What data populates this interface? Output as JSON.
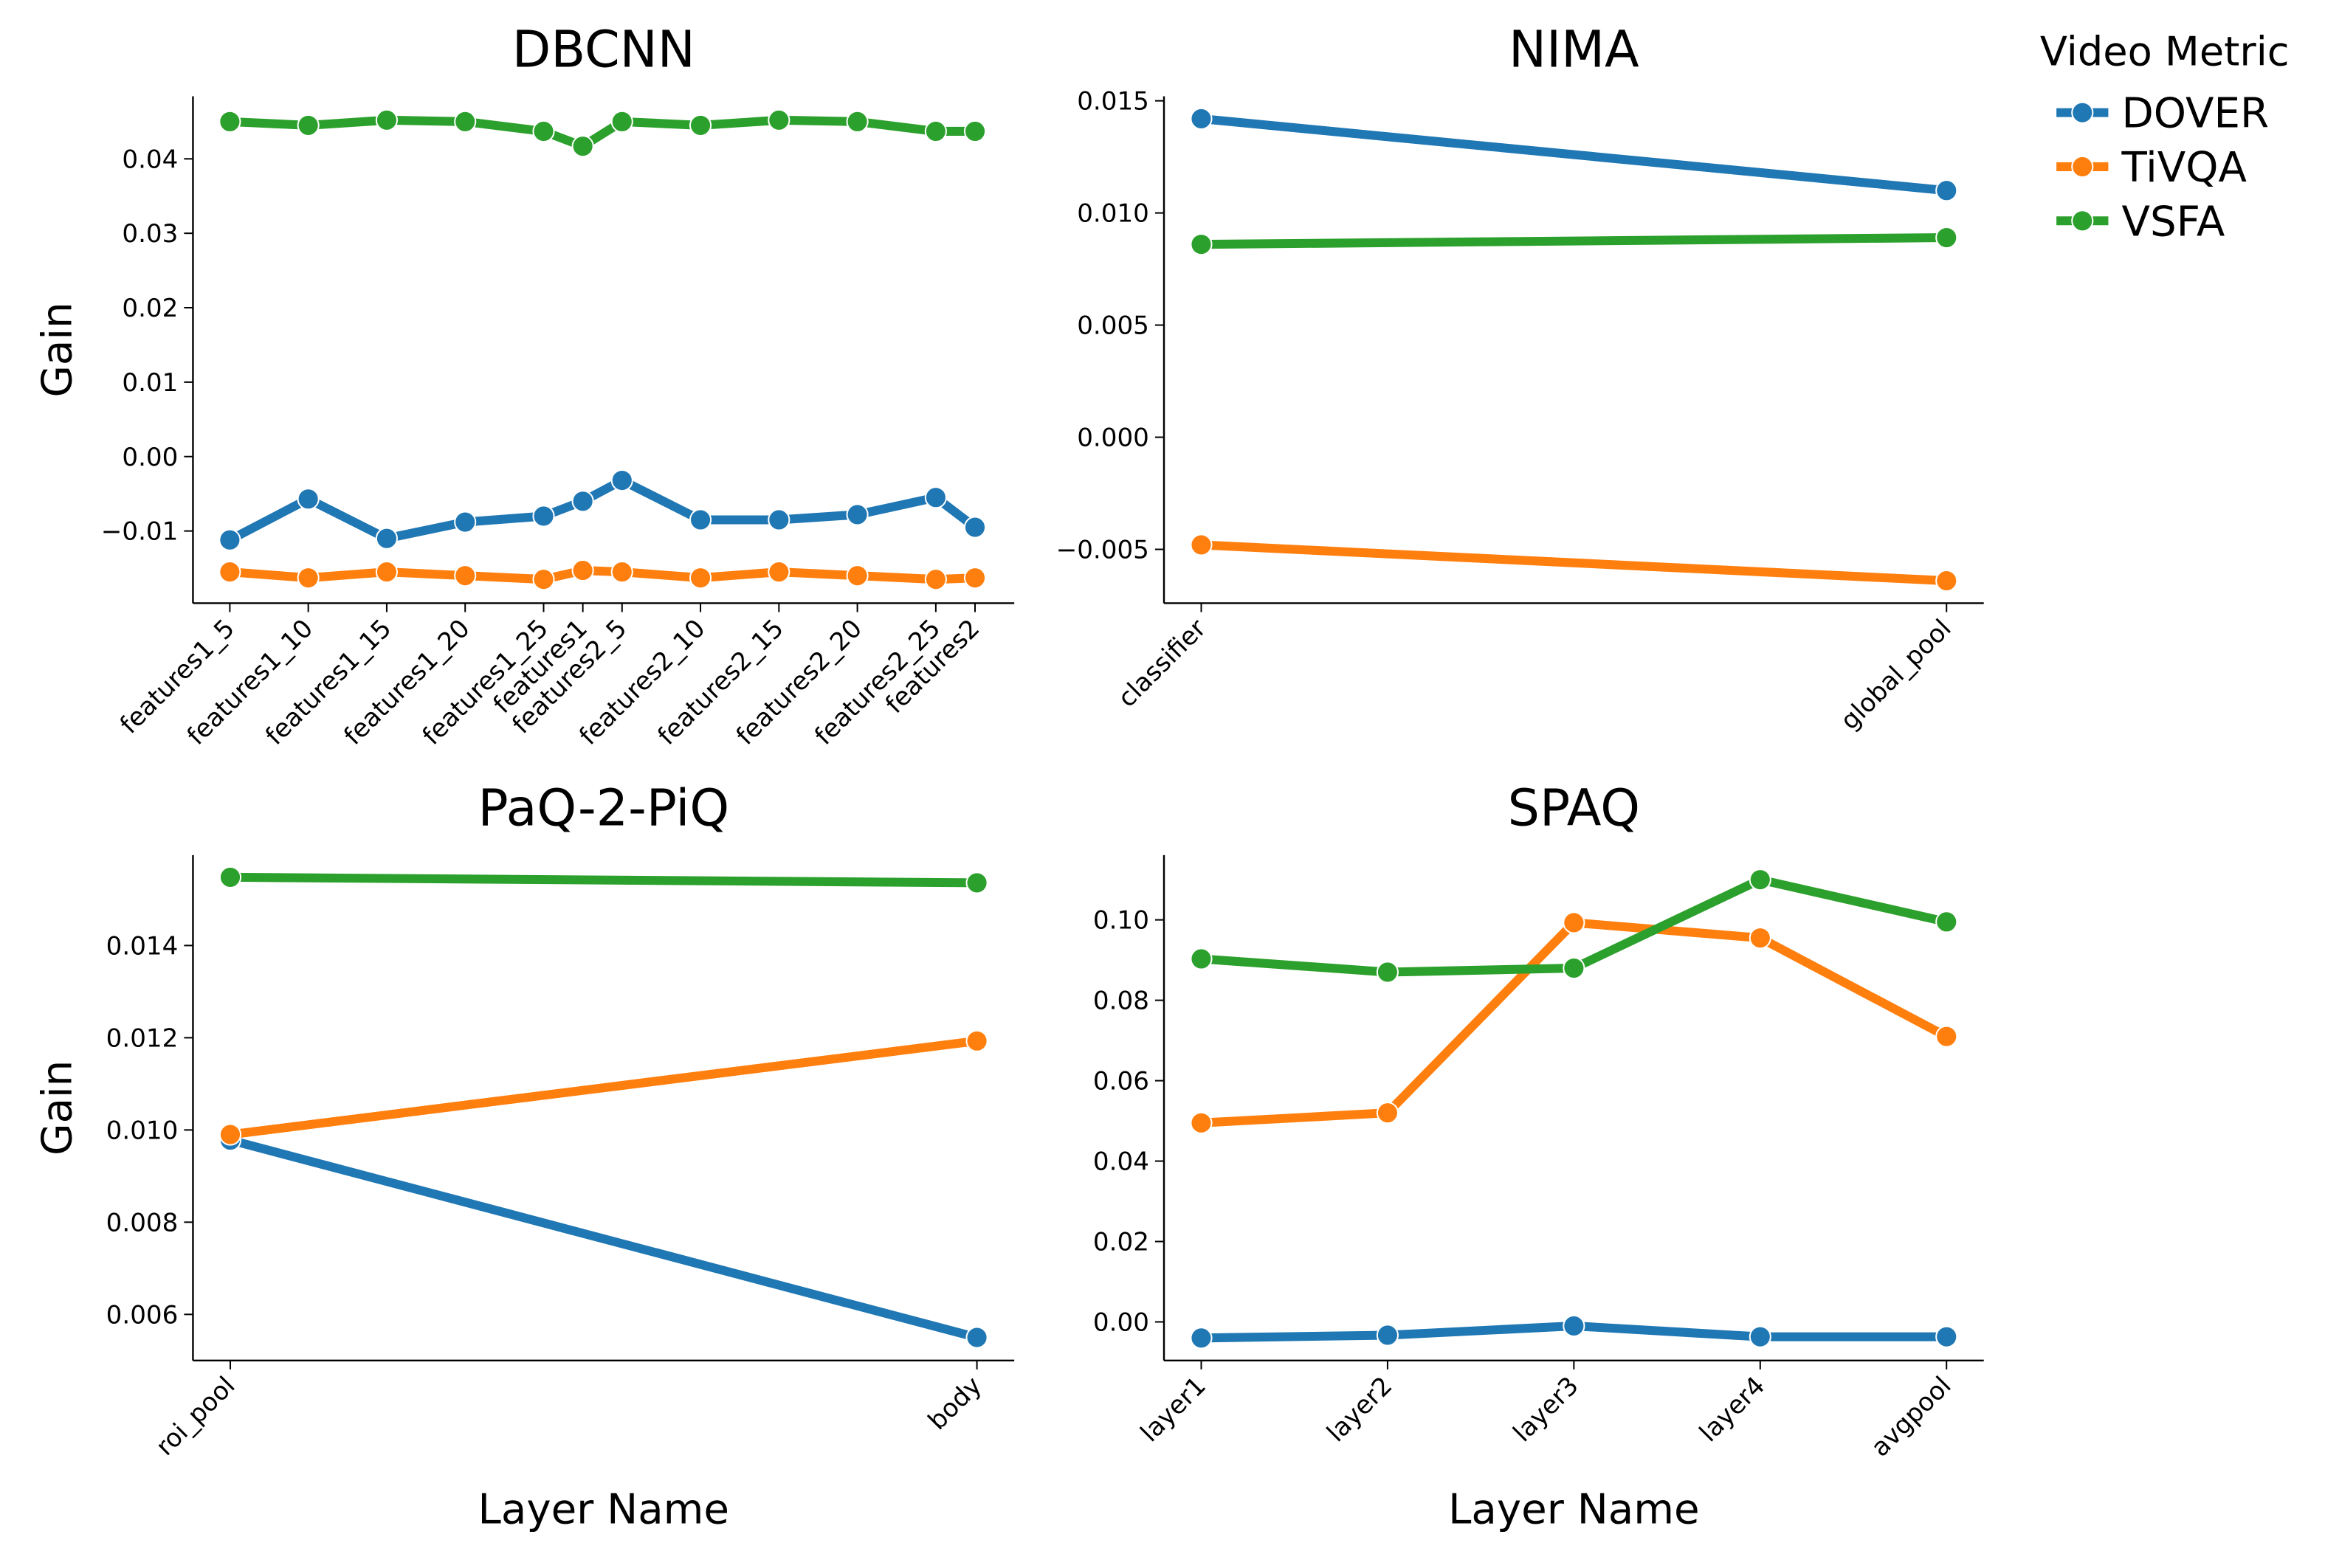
{
  "legend": {
    "title": "Video Metric",
    "placement": "top-right, outside",
    "entries": [
      {
        "name": "DOVER",
        "color": "#1f77b4"
      },
      {
        "name": "TiVQA",
        "color": "#ff7f0e"
      },
      {
        "name": "VSFA",
        "color": "#2ca02c"
      }
    ]
  },
  "chart_data": [
    {
      "type": "line",
      "title": "DBCNN",
      "xlabel": "",
      "ylabel": "Gain",
      "categories": [
        "features1_5",
        "features1_10",
        "features1_15",
        "features1_20",
        "features1_25",
        "features1",
        "features2_5",
        "features2_10",
        "features2_15",
        "features2_20",
        "features2_25",
        "features2"
      ],
      "x": [
        0,
        1,
        2,
        3,
        4,
        4.5,
        5,
        6,
        7,
        8,
        9,
        9.5
      ],
      "xlim": [
        -0.47,
        10.0
      ],
      "ylim": [
        -0.0197,
        0.0484
      ],
      "yticks": [
        -0.01,
        0.0,
        0.01,
        0.02,
        0.03,
        0.04
      ],
      "ytick_labels": [
        "−0.01",
        "0.00",
        "0.01",
        "0.02",
        "0.03",
        "0.04"
      ],
      "series": [
        {
          "name": "DOVER",
          "values": [
            -0.0112,
            -0.0057,
            -0.011,
            -0.0088,
            -0.008,
            -0.006,
            -0.0032,
            -0.0085,
            -0.0085,
            -0.0078,
            -0.0055,
            -0.0095
          ]
        },
        {
          "name": "TiVQA",
          "values": [
            -0.0155,
            -0.0163,
            -0.0155,
            -0.016,
            -0.0165,
            -0.0153,
            -0.0155,
            -0.0163,
            -0.0155,
            -0.016,
            -0.0165,
            -0.0163
          ]
        },
        {
          "name": "VSFA",
          "values": [
            0.045,
            0.0445,
            0.0452,
            0.045,
            0.0437,
            0.0417,
            0.045,
            0.0445,
            0.0452,
            0.045,
            0.0437,
            0.0437
          ]
        }
      ]
    },
    {
      "type": "line",
      "title": "NIMA",
      "xlabel": "",
      "ylabel": "",
      "categories": [
        "classifier",
        "global_pool"
      ],
      "x": [
        0,
        1
      ],
      "xlim": [
        -0.05,
        1.05
      ],
      "ylim": [
        -0.0074,
        0.0152
      ],
      "yticks": [
        -0.005,
        0.0,
        0.005,
        0.01,
        0.015
      ],
      "ytick_labels": [
        "−0.005",
        "0.000",
        "0.005",
        "0.010",
        "0.015"
      ],
      "series": [
        {
          "name": "DOVER",
          "values": [
            0.0142,
            0.011
          ]
        },
        {
          "name": "TiVQA",
          "values": [
            -0.0048,
            -0.0064
          ]
        },
        {
          "name": "VSFA",
          "values": [
            0.0086,
            0.0089
          ]
        }
      ]
    },
    {
      "type": "line",
      "title": "PaQ-2-PiQ",
      "xlabel": "Layer Name",
      "ylabel": "Gain",
      "categories": [
        "roi_pool",
        "body"
      ],
      "x": [
        0,
        1
      ],
      "xlim": [
        -0.05,
        1.05
      ],
      "ylim": [
        0.005,
        0.01596
      ],
      "yticks": [
        0.006,
        0.008,
        0.01,
        0.012,
        0.014
      ],
      "ytick_labels": [
        "0.006",
        "0.008",
        "0.010",
        "0.012",
        "0.014"
      ],
      "series": [
        {
          "name": "DOVER",
          "values": [
            0.00978,
            0.0055
          ]
        },
        {
          "name": "TiVQA",
          "values": [
            0.0099,
            0.01193
          ]
        },
        {
          "name": "VSFA",
          "values": [
            0.01548,
            0.01536
          ]
        }
      ]
    },
    {
      "type": "line",
      "title": "SPAQ",
      "xlabel": "Layer Name",
      "ylabel": "",
      "categories": [
        "layer1",
        "layer2",
        "layer3",
        "layer4",
        "avgpool"
      ],
      "x": [
        0,
        1,
        2,
        3,
        4
      ],
      "xlim": [
        -0.2,
        4.2
      ],
      "ylim": [
        -0.0096,
        0.1161
      ],
      "yticks": [
        0.0,
        0.02,
        0.04,
        0.06,
        0.08,
        0.1
      ],
      "ytick_labels": [
        "0.00",
        "0.02",
        "0.04",
        "0.06",
        "0.08",
        "0.10"
      ],
      "series": [
        {
          "name": "DOVER",
          "values": [
            -0.004,
            -0.0033,
            -0.001,
            -0.0037,
            -0.0037
          ]
        },
        {
          "name": "TiVQA",
          "values": [
            0.0495,
            0.052,
            0.0993,
            0.0955,
            0.071
          ]
        },
        {
          "name": "VSFA",
          "values": [
            0.0903,
            0.087,
            0.088,
            0.11,
            0.0995
          ]
        }
      ]
    }
  ]
}
